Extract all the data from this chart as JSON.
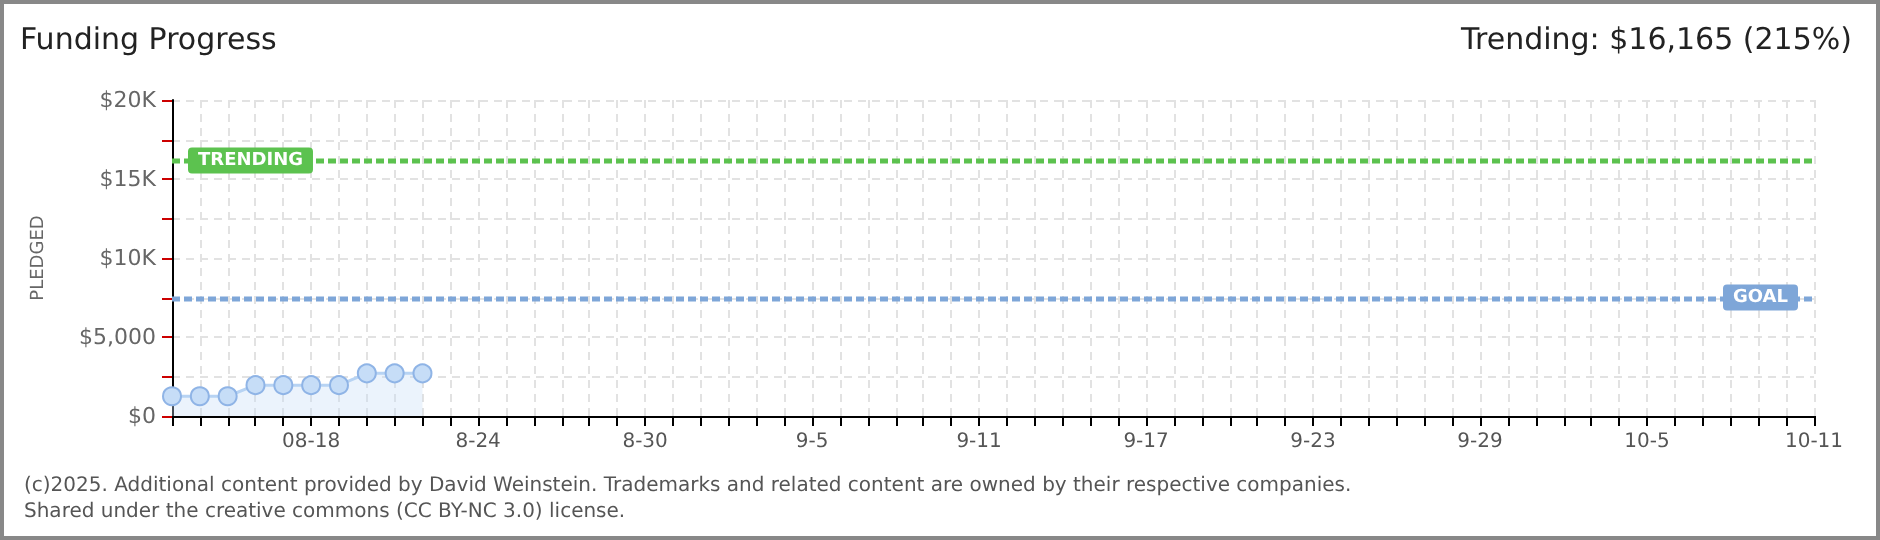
{
  "chart_data": {
    "type": "area",
    "title": "Funding Progress",
    "subtitle": "Trending: $16,165 (215%)",
    "ylabel": "PLEDGED",
    "x": [
      "2025-08-13",
      "2025-08-14",
      "2025-08-15",
      "2025-08-16",
      "2025-08-17",
      "2025-08-18",
      "2025-08-19",
      "2025-08-20",
      "2025-08-21",
      "2025-08-22"
    ],
    "series": [
      {
        "color": "#c6ddf7",
        "values": [
          1250,
          1250,
          1250,
          1950,
          1950,
          1950,
          1950,
          2700,
          2700,
          2700
        ]
      }
    ],
    "marker": "circle",
    "xlim": [
      "2025-08-13",
      "2025-10-11"
    ],
    "xticks": [
      {
        "value": "2025-08-13",
        "label": null
      },
      {
        "value": "2025-08-14",
        "label": null
      },
      {
        "value": "2025-08-15",
        "label": null
      },
      {
        "value": "2025-08-16",
        "label": null
      },
      {
        "value": "2025-08-17",
        "label": null
      },
      {
        "value": "2025-08-18",
        "label": "08-18"
      },
      {
        "value": "2025-08-19",
        "label": null
      },
      {
        "value": "2025-08-20",
        "label": null
      },
      {
        "value": "2025-08-21",
        "label": null
      },
      {
        "value": "2025-08-22",
        "label": null
      },
      {
        "value": "2025-08-23",
        "label": null
      },
      {
        "value": "2025-08-24",
        "label": "8-24"
      },
      {
        "value": "2025-08-25",
        "label": null
      },
      {
        "value": "2025-08-26",
        "label": null
      },
      {
        "value": "2025-08-27",
        "label": null
      },
      {
        "value": "2025-08-28",
        "label": null
      },
      {
        "value": "2025-08-29",
        "label": null
      },
      {
        "value": "2025-08-30",
        "label": "8-30"
      },
      {
        "value": "2025-08-31",
        "label": null
      },
      {
        "value": "2025-09-01",
        "label": null
      },
      {
        "value": "2025-09-02",
        "label": null
      },
      {
        "value": "2025-09-03",
        "label": null
      },
      {
        "value": "2025-09-04",
        "label": null
      },
      {
        "value": "2025-09-05",
        "label": "9-5"
      },
      {
        "value": "2025-09-06",
        "label": null
      },
      {
        "value": "2025-09-07",
        "label": null
      },
      {
        "value": "2025-09-08",
        "label": null
      },
      {
        "value": "2025-09-09",
        "label": null
      },
      {
        "value": "2025-09-10",
        "label": null
      },
      {
        "value": "2025-09-11",
        "label": "9-11"
      },
      {
        "value": "2025-09-12",
        "label": null
      },
      {
        "value": "2025-09-13",
        "label": null
      },
      {
        "value": "2025-09-14",
        "label": null
      },
      {
        "value": "2025-09-15",
        "label": null
      },
      {
        "value": "2025-09-16",
        "label": null
      },
      {
        "value": "2025-09-17",
        "label": "9-17"
      },
      {
        "value": "2025-09-18",
        "label": null
      },
      {
        "value": "2025-09-19",
        "label": null
      },
      {
        "value": "2025-09-20",
        "label": null
      },
      {
        "value": "2025-09-21",
        "label": null
      },
      {
        "value": "2025-09-22",
        "label": null
      },
      {
        "value": "2025-09-23",
        "label": "9-23"
      },
      {
        "value": "2025-09-24",
        "label": null
      },
      {
        "value": "2025-09-25",
        "label": null
      },
      {
        "value": "2025-09-26",
        "label": null
      },
      {
        "value": "2025-09-27",
        "label": null
      },
      {
        "value": "2025-09-28",
        "label": null
      },
      {
        "value": "2025-09-29",
        "label": "9-29"
      },
      {
        "value": "2025-09-30",
        "label": null
      },
      {
        "value": "2025-10-01",
        "label": null
      },
      {
        "value": "2025-10-02",
        "label": null
      },
      {
        "value": "2025-10-03",
        "label": null
      },
      {
        "value": "2025-10-04",
        "label": null
      },
      {
        "value": "2025-10-05",
        "label": "10-5"
      },
      {
        "value": "2025-10-06",
        "label": null
      },
      {
        "value": "2025-10-07",
        "label": null
      },
      {
        "value": "2025-10-08",
        "label": null
      },
      {
        "value": "2025-10-09",
        "label": null
      },
      {
        "value": "2025-10-10",
        "label": null
      },
      {
        "value": "2025-10-11",
        "label": "10-11"
      }
    ],
    "ylim": [
      0,
      20000
    ],
    "yticks": [
      {
        "value": 0,
        "label": "$0"
      },
      {
        "value": 2500,
        "label": null
      },
      {
        "value": 5000,
        "label": "$5,000"
      },
      {
        "value": 7500,
        "label": null
      },
      {
        "value": 10000,
        "label": "$10K"
      },
      {
        "value": 12500,
        "label": null
      },
      {
        "value": 15000,
        "label": "$15K"
      },
      {
        "value": 17500,
        "label": null
      },
      {
        "value": 20000,
        "label": "$20K"
      }
    ],
    "grid": true,
    "ref_lines": [
      {
        "axis": "y",
        "value": 16165,
        "label": "TRENDING",
        "color": "#5cc24f",
        "line_style": "dashed"
      },
      {
        "axis": "y",
        "value": 7500,
        "label": "GOAL",
        "color": "#7ea6d8",
        "line_style": "dashed"
      }
    ],
    "annotations": [
      "(c)2025. Additional content provided by David Weinstein. Trademarks and related content are owned by their respective companies.",
      "Shared under the creative commons (CC BY-NC 3.0) license."
    ]
  }
}
